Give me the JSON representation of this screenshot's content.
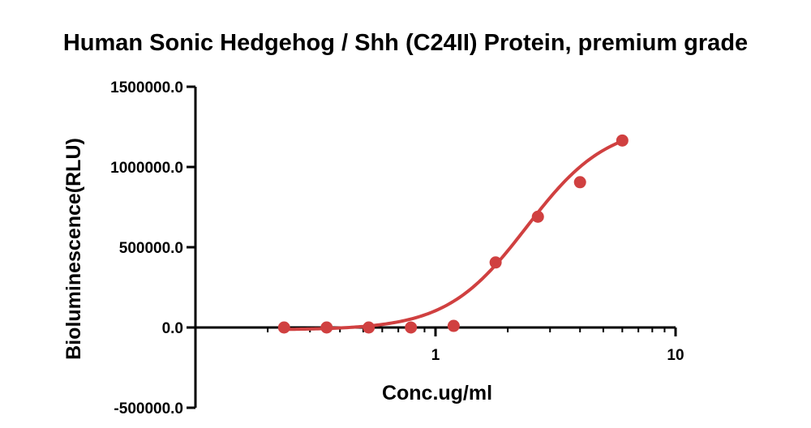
{
  "chart_data": {
    "type": "scatter",
    "title": "Human Sonic Hedgehog / Shh (C24II) Protein, premium grade",
    "xlabel": "Conc.ug/ml",
    "ylabel": "Bioluminescence(RLU)",
    "x_scale": "log",
    "xlim": [
      0.1,
      10
    ],
    "ylim": [
      -500000,
      1500000
    ],
    "x_ticks": [
      {
        "value": 1,
        "label": "1"
      },
      {
        "value": 10,
        "label": "10"
      }
    ],
    "y_ticks": [
      {
        "value": -500000,
        "label": "-500000.0"
      },
      {
        "value": 0,
        "label": "0.0"
      },
      {
        "value": 500000,
        "label": "500000.0"
      },
      {
        "value": 1000000,
        "label": "1000000.0"
      },
      {
        "value": 1500000,
        "label": "1500000.0"
      }
    ],
    "grid": false,
    "legend": "none",
    "color": "#d04040",
    "series": [
      {
        "points": [
          {
            "x": 0.234,
            "y": 0
          },
          {
            "x": 0.352,
            "y": 0
          },
          {
            "x": 0.527,
            "y": 0
          },
          {
            "x": 0.79,
            "y": 0
          },
          {
            "x": 1.19,
            "y": 10000
          },
          {
            "x": 1.78,
            "y": 405000
          },
          {
            "x": 2.67,
            "y": 690000
          },
          {
            "x": 4.0,
            "y": 905000
          },
          {
            "x": 6.0,
            "y": 1165000
          }
        ],
        "fit": {
          "model": "4PL",
          "bottom": -15000,
          "top": 1270000,
          "ec50": 2.4,
          "hill": 2.6,
          "x_range": [
            0.234,
            6.0
          ]
        }
      }
    ]
  }
}
